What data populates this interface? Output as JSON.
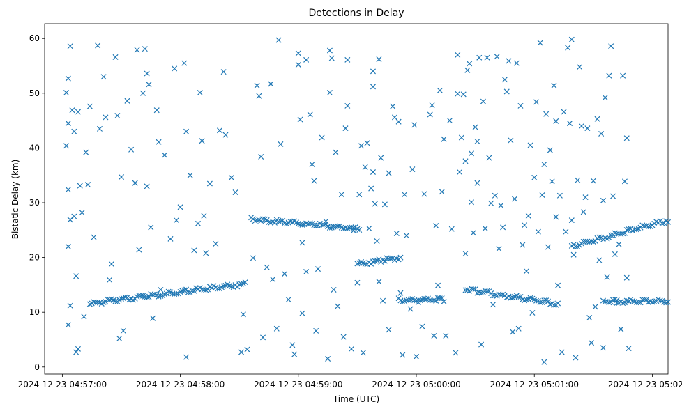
{
  "chart_data": {
    "type": "scatter",
    "title": "Detections in Delay",
    "xlabel": "Time (UTC)",
    "ylabel": "Bistatic Delay (km)",
    "x_start": "2024-12-23 04:56:57",
    "x_end": "2024-12-23 05:02:03",
    "xlim": [
      "2024-12-23 04:56:51",
      "2024-12-23 05:02:08"
    ],
    "ylim": [
      -1.3,
      62.7
    ],
    "xticks": [
      "2024-12-23 04:57:00",
      "2024-12-23 04:58:00",
      "2024-12-23 04:59:00",
      "2024-12-23 05:00:00",
      "2024-12-23 05:01:00",
      "2024-12-23 05:02:00"
    ],
    "yticks": [
      0,
      10,
      20,
      30,
      40,
      50,
      60
    ],
    "marker": "x",
    "color": "#1f77b4",
    "grid": false,
    "tracks": [
      {
        "start": "2024-12-23 04:57:14",
        "end": "2024-12-23 04:58:33",
        "y_start": 11.6,
        "y_end": 15.2
      },
      {
        "start": "2024-12-23 04:58:37",
        "end": "2024-12-23 04:59:31",
        "y_start": 27.0,
        "y_end": 25.2
      },
      {
        "start": "2024-12-23 04:59:30",
        "end": "2024-12-23 04:59:52",
        "y_start": 18.8,
        "y_end": 20.0
      },
      {
        "start": "2024-12-23 04:59:51",
        "end": "2024-12-23 05:00:14",
        "y_start": 12.2,
        "y_end": 12.3
      },
      {
        "start": "2024-12-23 05:00:25",
        "end": "2024-12-23 05:01:12",
        "y_start": 14.2,
        "y_end": 11.5
      },
      {
        "start": "2024-12-23 05:01:19",
        "end": "2024-12-23 05:02:08",
        "y_start": 22.0,
        "y_end": 26.8
      },
      {
        "start": "2024-12-23 05:01:35",
        "end": "2024-12-23 05:02:08",
        "y_start": 12.0,
        "y_end": 12.0
      }
    ],
    "points": [
      [
        "04:57:02",
        50.1
      ],
      [
        "04:57:03",
        52.7
      ],
      [
        "04:57:03",
        44.5
      ],
      [
        "04:57:02",
        40.4
      ],
      [
        "04:57:03",
        32.4
      ],
      [
        "04:57:04",
        26.9
      ],
      [
        "04:57:03",
        22.0
      ],
      [
        "04:57:04",
        11.2
      ],
      [
        "04:57:03",
        7.7
      ],
      [
        "04:57:04",
        58.6
      ],
      [
        "04:57:05",
        46.9
      ],
      [
        "04:57:06",
        43.0
      ],
      [
        "04:57:06",
        27.5
      ],
      [
        "04:57:07",
        16.6
      ],
      [
        "04:57:07",
        2.7
      ],
      [
        "04:57:08",
        3.3
      ],
      [
        "04:57:08",
        46.6
      ],
      [
        "04:57:09",
        33.1
      ],
      [
        "04:57:10",
        28.2
      ],
      [
        "04:57:11",
        9.2
      ],
      [
        "04:57:12",
        39.2
      ],
      [
        "04:57:13",
        33.3
      ],
      [
        "04:57:14",
        47.6
      ],
      [
        "04:57:16",
        23.7
      ],
      [
        "04:57:18",
        58.7
      ],
      [
        "04:57:19",
        43.5
      ],
      [
        "04:57:21",
        53.0
      ],
      [
        "04:57:22",
        45.6
      ],
      [
        "04:57:24",
        15.9
      ],
      [
        "04:57:25",
        18.8
      ],
      [
        "04:57:27",
        56.6
      ],
      [
        "04:57:28",
        45.9
      ],
      [
        "04:57:29",
        5.2
      ],
      [
        "04:57:30",
        34.7
      ],
      [
        "04:57:31",
        6.6
      ],
      [
        "04:57:33",
        48.6
      ],
      [
        "04:57:35",
        39.7
      ],
      [
        "04:57:37",
        33.6
      ],
      [
        "04:57:38",
        57.9
      ],
      [
        "04:57:39",
        21.4
      ],
      [
        "04:57:41",
        50.0
      ],
      [
        "04:57:42",
        58.1
      ],
      [
        "04:57:43",
        53.6
      ],
      [
        "04:57:43",
        33.0
      ],
      [
        "04:57:44",
        51.6
      ],
      [
        "04:57:45",
        25.5
      ],
      [
        "04:57:46",
        8.9
      ],
      [
        "04:57:48",
        46.9
      ],
      [
        "04:57:49",
        41.1
      ],
      [
        "04:57:50",
        14.1
      ],
      [
        "04:57:52",
        38.7
      ],
      [
        "04:57:55",
        23.4
      ],
      [
        "04:57:57",
        54.5
      ],
      [
        "04:57:58",
        26.8
      ],
      [
        "04:58:00",
        29.2
      ],
      [
        "04:58:02",
        55.5
      ],
      [
        "04:58:03",
        43.0
      ],
      [
        "04:58:03",
        1.8
      ],
      [
        "04:58:05",
        35.0
      ],
      [
        "04:58:07",
        21.3
      ],
      [
        "04:58:09",
        26.2
      ],
      [
        "04:58:10",
        50.1
      ],
      [
        "04:58:11",
        41.3
      ],
      [
        "04:58:12",
        27.6
      ],
      [
        "04:58:13",
        20.8
      ],
      [
        "04:58:15",
        33.5
      ],
      [
        "04:58:18",
        22.5
      ],
      [
        "04:58:20",
        43.2
      ],
      [
        "04:58:22",
        53.9
      ],
      [
        "04:58:23",
        42.4
      ],
      [
        "04:58:26",
        34.6
      ],
      [
        "04:58:28",
        31.9
      ],
      [
        "04:58:31",
        2.7
      ],
      [
        "04:58:32",
        9.6
      ],
      [
        "04:58:34",
        3.2
      ],
      [
        "04:58:36",
        27.3
      ],
      [
        "04:58:37",
        19.9
      ],
      [
        "04:58:39",
        51.4
      ],
      [
        "04:58:40",
        49.5
      ],
      [
        "04:58:41",
        38.4
      ],
      [
        "04:58:42",
        5.4
      ],
      [
        "04:58:44",
        18.2
      ],
      [
        "04:58:46",
        51.7
      ],
      [
        "04:58:47",
        16.0
      ],
      [
        "04:58:49",
        7.0
      ],
      [
        "04:58:50",
        59.7
      ],
      [
        "04:58:51",
        40.7
      ],
      [
        "04:58:53",
        17.0
      ],
      [
        "04:58:55",
        12.3
      ],
      [
        "04:58:57",
        4.0
      ],
      [
        "04:58:58",
        2.3
      ],
      [
        "04:59:00",
        57.3
      ],
      [
        "04:59:00",
        55.2
      ],
      [
        "04:59:01",
        45.2
      ],
      [
        "04:59:02",
        22.7
      ],
      [
        "04:59:02",
        9.8
      ],
      [
        "04:59:04",
        56.1
      ],
      [
        "04:59:04",
        17.4
      ],
      [
        "04:59:06",
        46.1
      ],
      [
        "04:59:07",
        37.0
      ],
      [
        "04:59:08",
        34.0
      ],
      [
        "04:59:09",
        6.6
      ],
      [
        "04:59:10",
        17.9
      ],
      [
        "04:59:12",
        41.9
      ],
      [
        "04:59:14",
        26.6
      ],
      [
        "04:59:15",
        1.5
      ],
      [
        "04:59:16",
        57.8
      ],
      [
        "04:59:16",
        50.1
      ],
      [
        "04:59:17",
        56.4
      ],
      [
        "04:59:18",
        14.1
      ],
      [
        "04:59:19",
        39.2
      ],
      [
        "04:59:20",
        11.1
      ],
      [
        "04:59:22",
        31.5
      ],
      [
        "04:59:23",
        5.5
      ],
      [
        "04:59:24",
        43.6
      ],
      [
        "04:59:25",
        56.1
      ],
      [
        "04:59:25",
        47.7
      ],
      [
        "04:59:27",
        3.3
      ],
      [
        "04:59:28",
        24.9
      ],
      [
        "04:59:30",
        15.4
      ],
      [
        "04:59:31",
        31.5
      ],
      [
        "04:59:32",
        40.4
      ],
      [
        "04:59:33",
        2.6
      ],
      [
        "04:59:34",
        36.5
      ],
      [
        "04:59:35",
        40.9
      ],
      [
        "04:59:36",
        25.3
      ],
      [
        "04:59:37",
        32.6
      ],
      [
        "04:59:38",
        54.0
      ],
      [
        "04:59:38",
        51.2
      ],
      [
        "04:59:38",
        35.6
      ],
      [
        "04:59:39",
        29.8
      ],
      [
        "04:59:40",
        23.0
      ],
      [
        "04:59:41",
        15.6
      ],
      [
        "04:59:41",
        56.2
      ],
      [
        "04:59:42",
        38.2
      ],
      [
        "04:59:43",
        12.1
      ],
      [
        "04:59:44",
        29.7
      ],
      [
        "04:59:46",
        35.4
      ],
      [
        "04:59:46",
        6.8
      ],
      [
        "04:59:48",
        47.6
      ],
      [
        "04:59:49",
        45.6
      ],
      [
        "04:59:50",
        24.4
      ],
      [
        "04:59:51",
        44.8
      ],
      [
        "04:59:52",
        13.5
      ],
      [
        "04:59:53",
        2.2
      ],
      [
        "04:59:54",
        31.5
      ],
      [
        "04:59:55",
        24.0
      ],
      [
        "04:59:57",
        10.6
      ],
      [
        "04:59:58",
        36.1
      ],
      [
        "04:59:59",
        44.2
      ],
      [
        "05:00:00",
        1.9
      ],
      [
        "05:00:01",
        11.8
      ],
      [
        "05:00:03",
        7.4
      ],
      [
        "05:00:04",
        31.6
      ],
      [
        "05:00:07",
        46.1
      ],
      [
        "05:00:08",
        47.8
      ],
      [
        "05:00:09",
        5.7
      ],
      [
        "05:00:10",
        25.8
      ],
      [
        "05:00:11",
        14.9
      ],
      [
        "05:00:12",
        50.5
      ],
      [
        "05:00:13",
        32.0
      ],
      [
        "05:00:14",
        41.6
      ],
      [
        "05:00:15",
        5.7
      ],
      [
        "05:00:17",
        45.0
      ],
      [
        "05:00:18",
        25.2
      ],
      [
        "05:00:20",
        2.6
      ],
      [
        "05:00:21",
        57.0
      ],
      [
        "05:00:21",
        49.9
      ],
      [
        "05:00:22",
        35.6
      ],
      [
        "05:00:23",
        41.9
      ],
      [
        "05:00:24",
        49.8
      ],
      [
        "05:00:25",
        37.6
      ],
      [
        "05:00:25",
        20.7
      ],
      [
        "05:00:26",
        54.2
      ],
      [
        "05:00:27",
        55.4
      ],
      [
        "05:00:28",
        39.0
      ],
      [
        "05:00:28",
        30.1
      ],
      [
        "05:00:29",
        24.5
      ],
      [
        "05:00:30",
        43.8
      ],
      [
        "05:00:31",
        41.2
      ],
      [
        "05:00:31",
        33.6
      ],
      [
        "05:00:32",
        56.5
      ],
      [
        "05:00:33",
        4.1
      ],
      [
        "05:00:34",
        48.5
      ],
      [
        "05:00:35",
        25.3
      ],
      [
        "05:00:36",
        56.5
      ],
      [
        "05:00:37",
        38.2
      ],
      [
        "05:00:38",
        29.9
      ],
      [
        "05:00:39",
        11.4
      ],
      [
        "05:00:40",
        31.3
      ],
      [
        "05:00:41",
        56.7
      ],
      [
        "05:00:42",
        21.6
      ],
      [
        "05:00:43",
        29.5
      ],
      [
        "05:00:44",
        25.5
      ],
      [
        "05:00:45",
        52.5
      ],
      [
        "05:00:46",
        50.3
      ],
      [
        "05:00:47",
        55.9
      ],
      [
        "05:00:48",
        41.4
      ],
      [
        "05:00:49",
        6.4
      ],
      [
        "05:00:50",
        30.7
      ],
      [
        "05:00:51",
        55.5
      ],
      [
        "05:00:52",
        7.0
      ],
      [
        "05:00:53",
        47.7
      ],
      [
        "05:00:54",
        22.3
      ],
      [
        "05:00:55",
        25.9
      ],
      [
        "05:00:56",
        17.5
      ],
      [
        "05:00:57",
        27.6
      ],
      [
        "05:00:58",
        40.5
      ],
      [
        "05:00:59",
        9.9
      ],
      [
        "05:01:00",
        34.6
      ],
      [
        "05:01:01",
        48.4
      ],
      [
        "05:01:02",
        24.7
      ],
      [
        "05:01:03",
        59.2
      ],
      [
        "05:01:04",
        31.4
      ],
      [
        "05:01:05",
        37.0
      ],
      [
        "05:01:05",
        0.9
      ],
      [
        "05:01:06",
        46.2
      ],
      [
        "05:01:07",
        21.9
      ],
      [
        "05:01:08",
        39.6
      ],
      [
        "05:01:09",
        33.9
      ],
      [
        "05:01:10",
        51.4
      ],
      [
        "05:01:11",
        44.9
      ],
      [
        "05:01:11",
        27.4
      ],
      [
        "05:01:12",
        14.9
      ],
      [
        "05:01:13",
        31.3
      ],
      [
        "05:01:14",
        2.7
      ],
      [
        "05:01:15",
        46.6
      ],
      [
        "05:01:16",
        24.7
      ],
      [
        "05:01:17",
        58.3
      ],
      [
        "05:01:18",
        44.5
      ],
      [
        "05:01:19",
        59.8
      ],
      [
        "05:01:19",
        26.8
      ],
      [
        "05:01:20",
        20.5
      ],
      [
        "05:01:21",
        1.7
      ],
      [
        "05:01:22",
        34.1
      ],
      [
        "05:01:23",
        54.8
      ],
      [
        "05:01:24",
        44.0
      ],
      [
        "05:01:25",
        28.3
      ],
      [
        "05:01:26",
        31.0
      ],
      [
        "05:01:27",
        43.6
      ],
      [
        "05:01:28",
        9.0
      ],
      [
        "05:01:29",
        4.4
      ],
      [
        "05:01:30",
        34.0
      ],
      [
        "05:01:31",
        11.0
      ],
      [
        "05:01:32",
        45.3
      ],
      [
        "05:01:33",
        19.5
      ],
      [
        "05:01:34",
        42.6
      ],
      [
        "05:01:35",
        30.4
      ],
      [
        "05:01:35",
        3.5
      ],
      [
        "05:01:36",
        49.2
      ],
      [
        "05:01:37",
        16.4
      ],
      [
        "05:01:38",
        53.2
      ],
      [
        "05:01:39",
        58.6
      ],
      [
        "05:01:40",
        31.2
      ],
      [
        "05:01:41",
        20.6
      ],
      [
        "05:01:42",
        11.7
      ],
      [
        "05:01:43",
        22.4
      ],
      [
        "05:01:44",
        6.9
      ],
      [
        "05:01:45",
        53.2
      ],
      [
        "05:01:46",
        33.9
      ],
      [
        "05:01:47",
        41.8
      ],
      [
        "05:01:47",
        16.3
      ],
      [
        "05:01:48",
        3.4
      ]
    ]
  }
}
